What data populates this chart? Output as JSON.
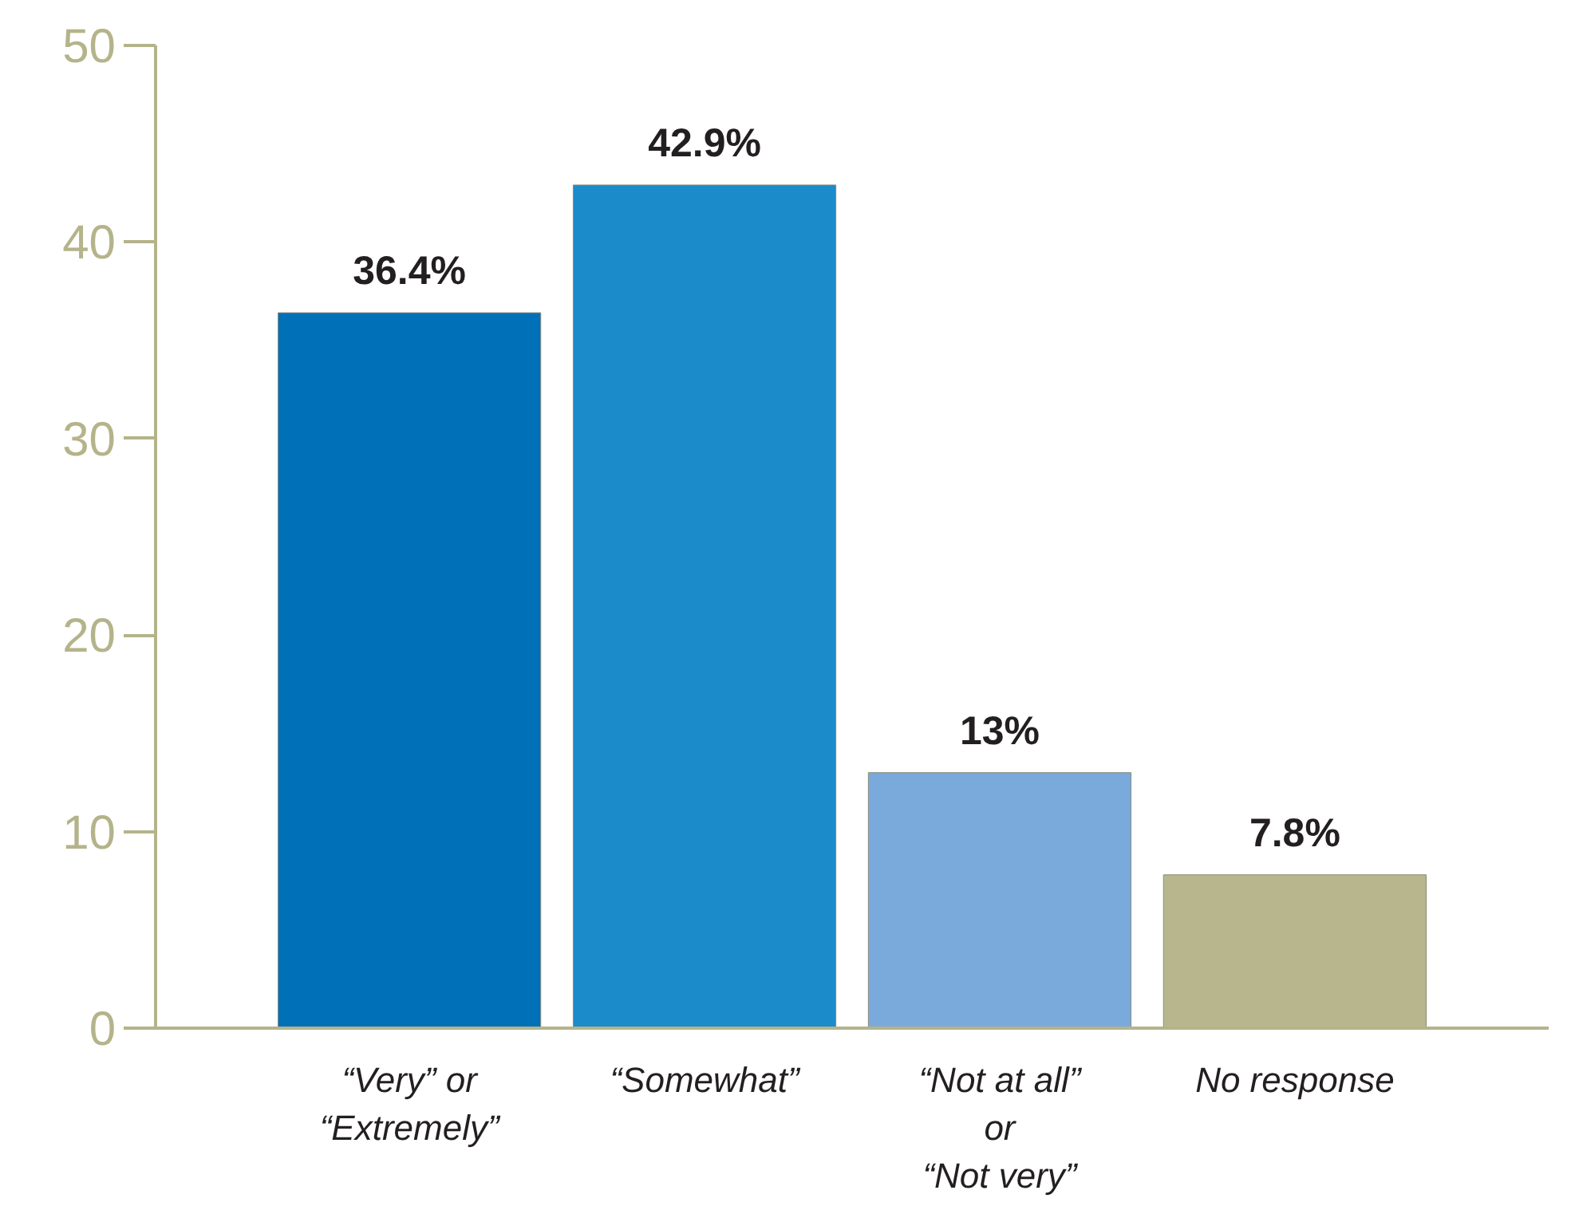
{
  "chart_data": {
    "type": "bar",
    "categories": [
      "“Very” or\n“Extremely”",
      "“Somewhat”",
      "“Not at all”\nor\n“Not very”",
      "No response"
    ],
    "values": [
      36.4,
      42.9,
      13,
      7.8
    ],
    "colors": [
      "#0070b8",
      "#1b8bc9",
      "#79aadb",
      "#b8b68c"
    ],
    "value_labels": [
      "36.4%",
      "42.9%",
      "13%",
      "7.8%"
    ],
    "ylim": [
      0,
      50
    ],
    "yticks": [
      0,
      10,
      20,
      30,
      40,
      50
    ],
    "grid": false
  }
}
